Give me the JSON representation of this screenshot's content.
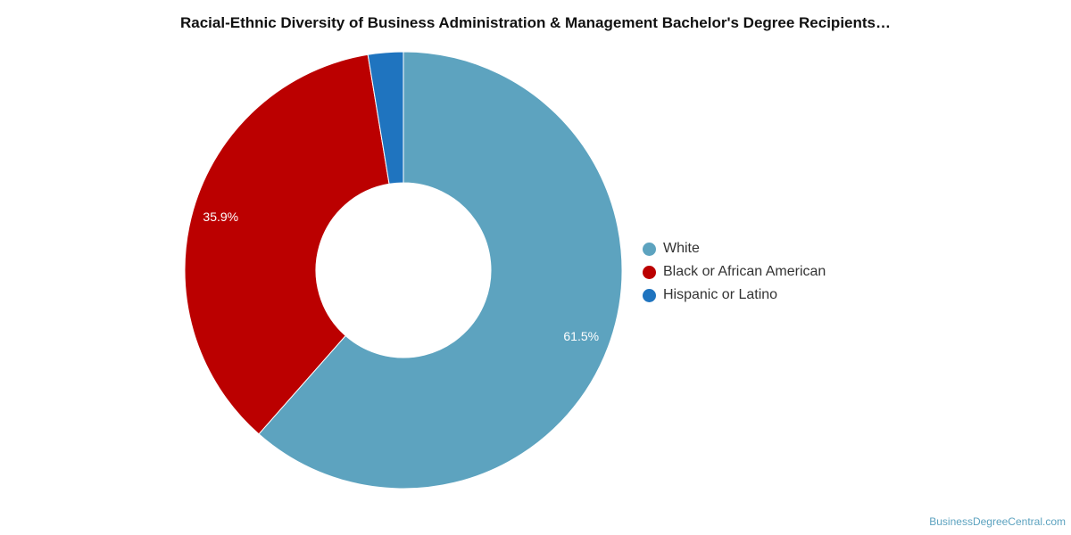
{
  "chart_data": {
    "type": "pie",
    "title": "Racial-Ethnic Diversity of Business Administration & Management Bachelor's Degree Recipients…",
    "legend_position": "right",
    "slices": [
      {
        "name": "White",
        "value": 61.5,
        "label": "61.5%",
        "color": "#5da3bf"
      },
      {
        "name": "Black or African American",
        "value": 35.9,
        "label": "35.9%",
        "color": "#bb0000"
      },
      {
        "name": "Hispanic or Latino",
        "value": 2.6,
        "label": "",
        "color": "#1f74bf"
      }
    ]
  },
  "footer": {
    "watermark": "BusinessDegreeCentral.com"
  }
}
